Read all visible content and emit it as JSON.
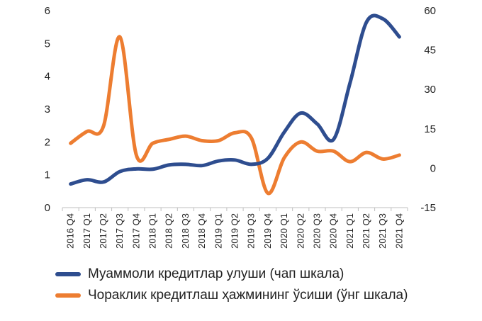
{
  "chart_data": {
    "type": "line",
    "categories": [
      "2016 Q4",
      "2017 Q1",
      "2017 Q2",
      "2017 Q3",
      "2017 Q4",
      "2018 Q1",
      "2018 Q2",
      "2018 Q3",
      "2018 Q4",
      "2019 Q1",
      "2019 Q2",
      "2019 Q3",
      "2019 Q4",
      "2020 Q1",
      "2020 Q2",
      "2020 Q3",
      "2020 Q4",
      "2021 Q1",
      "2021 Q2",
      "2021 Q3",
      "2021 Q4"
    ],
    "series": [
      {
        "name": "Муаммоли кредитлар улуши (чап шкала)",
        "axis": "left",
        "color": "#2E4D8F",
        "values": [
          0.72,
          0.85,
          0.78,
          1.1,
          1.18,
          1.17,
          1.3,
          1.32,
          1.28,
          1.42,
          1.45,
          1.32,
          1.5,
          2.3,
          2.88,
          2.55,
          2.08,
          3.8,
          5.65,
          5.75,
          5.2
        ]
      },
      {
        "name": "Чораклик кредитлаш ҳажмининг ўсиши (ўнг шкала)",
        "axis": "right",
        "color": "#ED7D31",
        "values": [
          9.5,
          14,
          16,
          50,
          5,
          9.5,
          11,
          12.2,
          10.5,
          10.5,
          13.5,
          11.5,
          -9.5,
          4,
          10,
          6.5,
          6.5,
          2.5,
          6,
          3.5,
          5
        ]
      }
    ],
    "y_left": {
      "min": 0,
      "max": 6,
      "ticks": [
        "0",
        "1",
        "2",
        "3",
        "4",
        "5",
        "6"
      ]
    },
    "y_right": {
      "min": -15,
      "max": 60,
      "ticks": [
        "-15",
        "0",
        "15",
        "30",
        "45",
        "60"
      ]
    },
    "grid": false,
    "legend_position": "bottom"
  }
}
